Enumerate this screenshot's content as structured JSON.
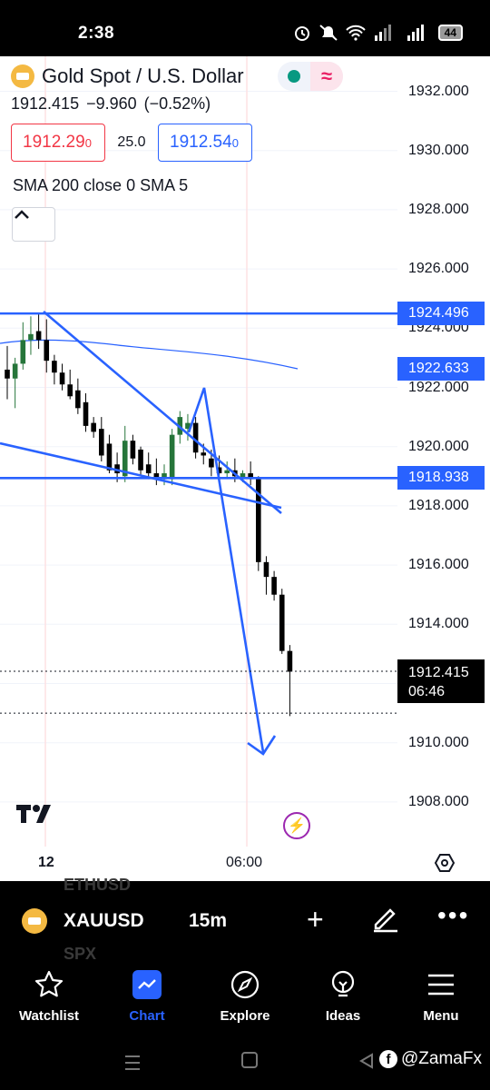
{
  "status_bar": {
    "time": "2:38",
    "battery": "44",
    "icons": [
      "alarm-icon",
      "mute-icon",
      "wifi-icon",
      "signal-icon",
      "signal-icon"
    ]
  },
  "chart_header": {
    "title": "Gold Spot / U.S. Dollar",
    "price": "1912.415",
    "change": "−9.960",
    "change_pct": "(−0.52%)",
    "sell_price": "1912.29",
    "sell_price_small": "0",
    "spread": "25.0",
    "buy_price": "1912.54",
    "buy_price_small": "0",
    "indicator_legend": "SMA 200 close 0 SMA 5",
    "market_status_color": "#089981"
  },
  "price_axis": {
    "ticks": [
      "1932.000",
      "1930.000",
      "1928.000",
      "1926.000",
      "1924.000",
      "1922.000",
      "1920.000",
      "1918.000",
      "1916.000",
      "1914.000",
      "1910.000",
      "1908.000"
    ],
    "levels": [
      "1924.496",
      "1922.633",
      "1918.938"
    ],
    "current_price": "1912.415",
    "countdown": "06:46"
  },
  "time_axis": {
    "day_label": "12",
    "time_label": "06:00"
  },
  "chart_data": {
    "type": "candlestick",
    "symbol": "XAUUSD",
    "interval": "15m",
    "y_axis_ticks": [
      1908,
      1910,
      1914,
      1916,
      1918,
      1920,
      1922,
      1924,
      1926,
      1928,
      1930,
      1932
    ],
    "horizontal_levels": [
      1924.496,
      1922.633,
      1918.938
    ],
    "current_price": 1912.415,
    "candles": [
      {
        "o": 1922.6,
        "h": 1923.4,
        "l": 1921.6,
        "c": 1922.3
      },
      {
        "o": 1922.3,
        "h": 1923.0,
        "l": 1921.3,
        "c": 1922.8
      },
      {
        "o": 1922.8,
        "h": 1924.2,
        "l": 1922.6,
        "c": 1923.6
      },
      {
        "o": 1923.6,
        "h": 1924.4,
        "l": 1923.1,
        "c": 1923.8
      },
      {
        "o": 1923.9,
        "h": 1924.5,
        "l": 1923.3,
        "c": 1923.6
      },
      {
        "o": 1923.6,
        "h": 1924.3,
        "l": 1922.5,
        "c": 1922.9
      },
      {
        "o": 1922.9,
        "h": 1923.1,
        "l": 1922.1,
        "c": 1922.5
      },
      {
        "o": 1922.5,
        "h": 1922.8,
        "l": 1921.9,
        "c": 1922.1
      },
      {
        "o": 1922.1,
        "h": 1922.6,
        "l": 1921.6,
        "c": 1921.7
      },
      {
        "o": 1921.9,
        "h": 1922.3,
        "l": 1921.1,
        "c": 1921.3
      },
      {
        "o": 1921.5,
        "h": 1921.8,
        "l": 1920.5,
        "c": 1920.7
      },
      {
        "o": 1920.8,
        "h": 1921.0,
        "l": 1920.3,
        "c": 1920.5
      },
      {
        "o": 1920.6,
        "h": 1921.0,
        "l": 1919.5,
        "c": 1919.7
      },
      {
        "o": 1920.1,
        "h": 1920.4,
        "l": 1919.1,
        "c": 1919.2
      },
      {
        "o": 1919.4,
        "h": 1919.8,
        "l": 1918.8,
        "c": 1919.1
      },
      {
        "o": 1919.0,
        "h": 1920.7,
        "l": 1918.8,
        "c": 1920.2
      },
      {
        "o": 1920.2,
        "h": 1920.4,
        "l": 1919.4,
        "c": 1919.6
      },
      {
        "o": 1919.9,
        "h": 1920.0,
        "l": 1919.0,
        "c": 1919.2
      },
      {
        "o": 1919.4,
        "h": 1919.8,
        "l": 1918.9,
        "c": 1919.1
      },
      {
        "o": 1919.1,
        "h": 1919.6,
        "l": 1918.7,
        "c": 1918.9
      },
      {
        "o": 1918.9,
        "h": 1919.4,
        "l": 1918.7,
        "c": 1919.1
      },
      {
        "o": 1918.9,
        "h": 1920.6,
        "l": 1918.7,
        "c": 1920.4
      },
      {
        "o": 1920.4,
        "h": 1921.2,
        "l": 1920.1,
        "c": 1921.0
      },
      {
        "o": 1920.6,
        "h": 1921.1,
        "l": 1920.2,
        "c": 1920.8
      },
      {
        "o": 1920.8,
        "h": 1921.0,
        "l": 1919.6,
        "c": 1919.8
      },
      {
        "o": 1919.8,
        "h": 1920.1,
        "l": 1919.4,
        "c": 1919.7
      },
      {
        "o": 1919.6,
        "h": 1919.9,
        "l": 1919.0,
        "c": 1919.3
      },
      {
        "o": 1919.3,
        "h": 1919.7,
        "l": 1918.8,
        "c": 1919.1
      },
      {
        "o": 1919.1,
        "h": 1919.5,
        "l": 1918.9,
        "c": 1919.2
      },
      {
        "o": 1919.2,
        "h": 1919.6,
        "l": 1918.8,
        "c": 1919.0
      },
      {
        "o": 1918.9,
        "h": 1919.2,
        "l": 1918.8,
        "c": 1919.1
      },
      {
        "o": 1919.1,
        "h": 1919.5,
        "l": 1918.7,
        "c": 1918.9
      },
      {
        "o": 1918.9,
        "h": 1919.0,
        "l": 1915.8,
        "c": 1916.1
      },
      {
        "o": 1916.1,
        "h": 1916.3,
        "l": 1915.0,
        "c": 1915.6
      },
      {
        "o": 1915.6,
        "h": 1915.8,
        "l": 1914.8,
        "c": 1915.0
      },
      {
        "o": 1915.0,
        "h": 1915.2,
        "l": 1913.0,
        "c": 1913.1
      },
      {
        "o": 1913.1,
        "h": 1913.3,
        "l": 1910.9,
        "c": 1912.4
      }
    ],
    "moving_averages": [
      {
        "name": "SMA 200",
        "values": [
          1923.6,
          1923.5,
          1923.3,
          1923.1,
          1922.8
        ]
      },
      {
        "name": "SMA 5",
        "values": []
      }
    ],
    "drawings": [
      {
        "type": "trendline",
        "from": [
          1924.5,
          "12"
        ],
        "to": [
          1917.8,
          "after 06:00"
        ]
      },
      {
        "type": "trendline",
        "note": "lower descending trendline"
      },
      {
        "type": "arrow",
        "note": "projected move down toward 1909.6"
      }
    ]
  },
  "toolbar": {
    "symbol": "XAUUSD",
    "interval": "15m",
    "ghost_top": "ETHUSD",
    "ghost_bottom": "SPX"
  },
  "bottom_nav": {
    "items": [
      {
        "label": "Watchlist",
        "icon": "star-icon"
      },
      {
        "label": "Chart",
        "icon": "chart-icon"
      },
      {
        "label": "Explore",
        "icon": "compass-icon"
      },
      {
        "label": "Ideas",
        "icon": "lightbulb-icon"
      },
      {
        "label": "Menu",
        "icon": "hamburger-icon"
      }
    ],
    "active": "Chart"
  },
  "watermark": "@ZamaFx",
  "colors": {
    "up": "#26753a",
    "down": "#000000",
    "drawing": "#2962ff",
    "sell": "#f23645",
    "buy": "#2962ff"
  }
}
